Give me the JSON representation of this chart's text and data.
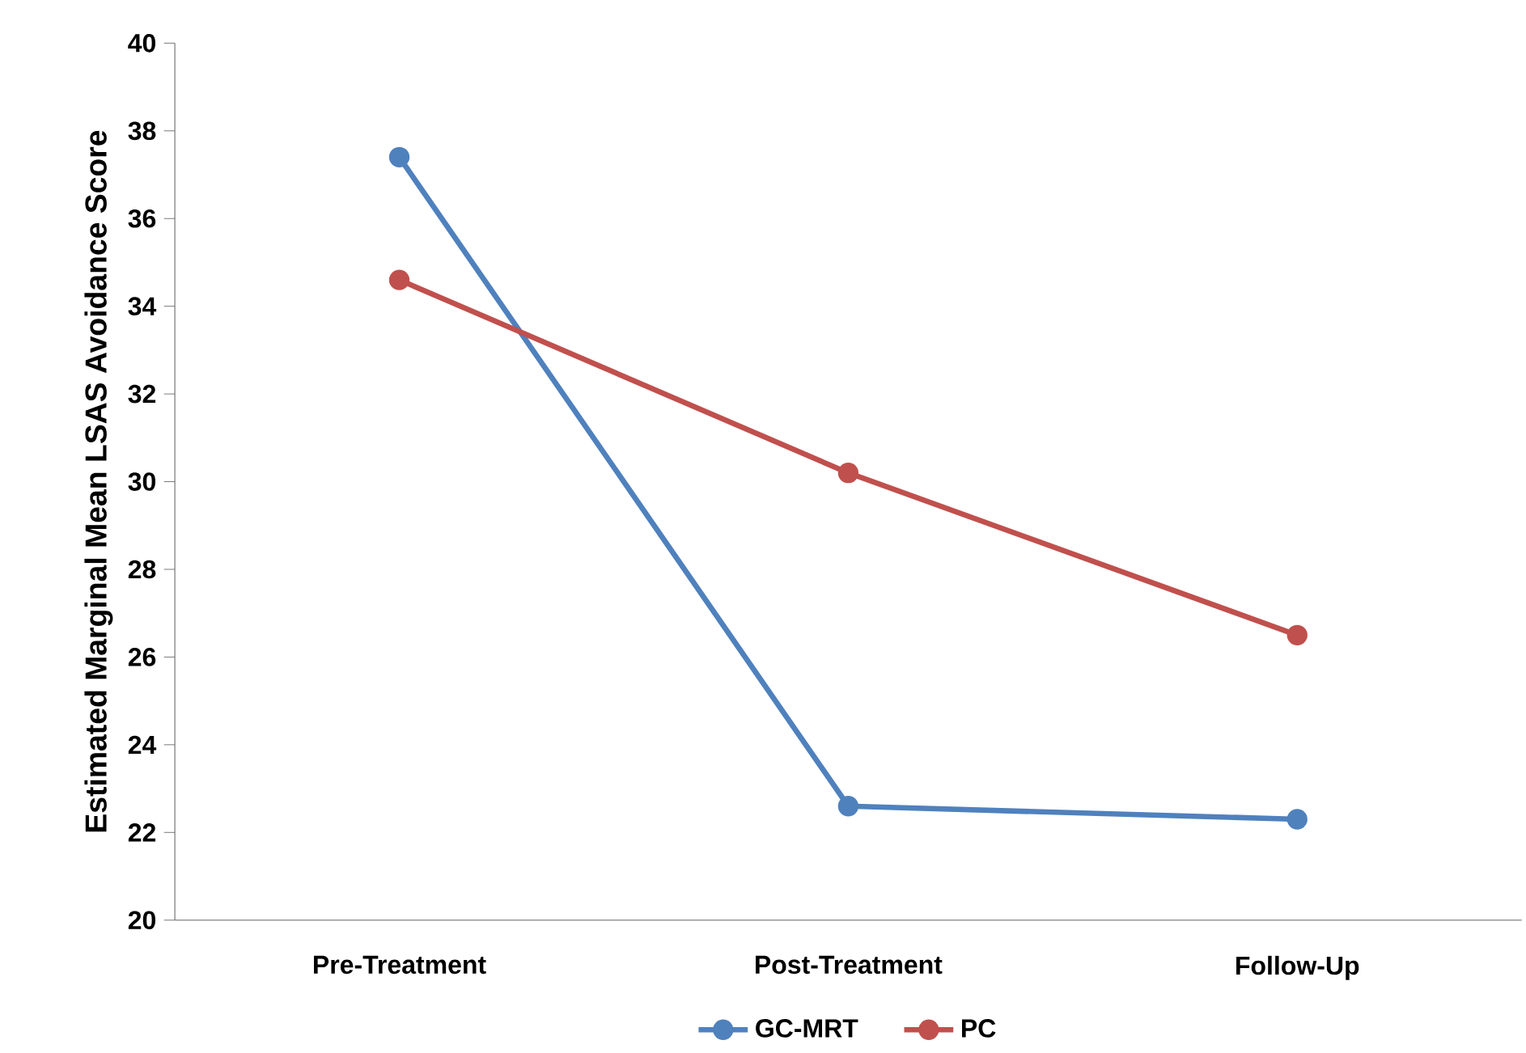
{
  "chart_data": {
    "type": "line",
    "ylabel": "Estimated Marginal Mean LSAS Avoidance Score",
    "categories": [
      "Pre-Treatment",
      "Post-Treatment",
      "Follow-Up"
    ],
    "series": [
      {
        "name": "GC-MRT",
        "color": "#4f81bd",
        "values": [
          37.4,
          22.6,
          22.3
        ]
      },
      {
        "name": "PC",
        "color": "#c0504d",
        "values": [
          34.6,
          30.2,
          26.5
        ]
      }
    ],
    "ylim": [
      20,
      40
    ],
    "yticks": [
      20,
      22,
      24,
      26,
      28,
      30,
      32,
      34,
      36,
      38,
      40
    ],
    "grid": false,
    "legend": "bottom",
    "marker": "circle",
    "line_style": "solid"
  }
}
